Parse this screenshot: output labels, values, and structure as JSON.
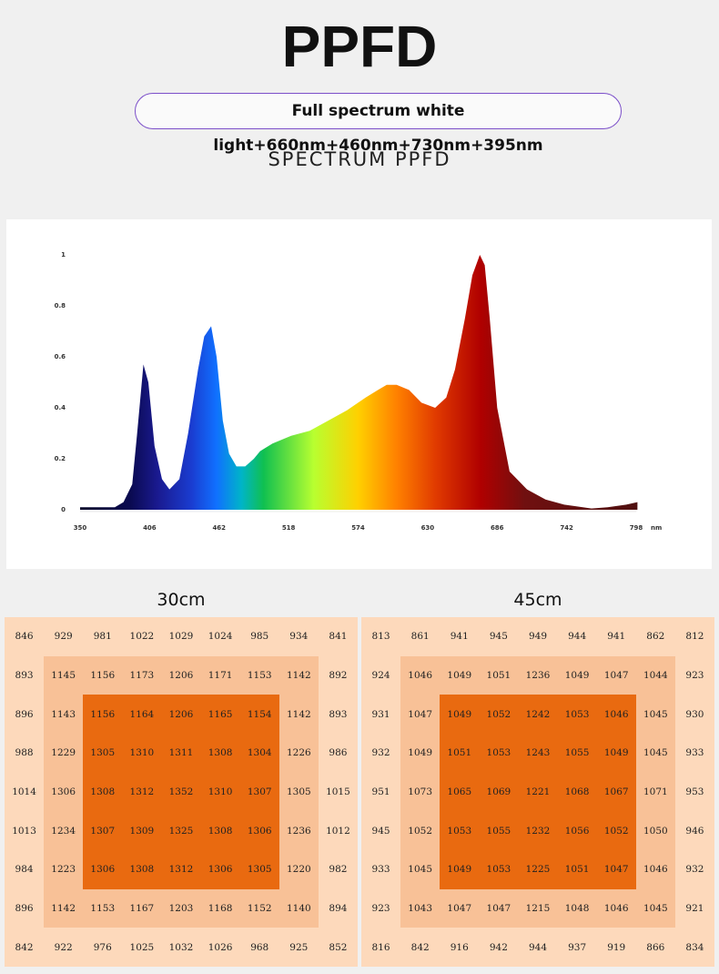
{
  "header": {
    "title": "PPFD",
    "pill": "Full spectrum white light+660nm+460nm+730nm+395nm",
    "subtitle": "SPECTRUM PPFD"
  },
  "chart_data": {
    "type": "area",
    "title": "SPECTRUM PPFD",
    "xlabel": "nm",
    "ylabel": "",
    "xlim": [
      350,
      798
    ],
    "ylim": [
      0,
      1
    ],
    "xticks": [
      "350",
      "406",
      "462",
      "518",
      "574",
      "630",
      "686",
      "742",
      "798"
    ],
    "yticks": [
      "0",
      "0.2",
      "0.4",
      "0.6",
      "0.8",
      "1"
    ],
    "x": [
      350,
      370,
      378,
      385,
      392,
      396,
      401,
      405,
      410,
      416,
      422,
      430,
      437,
      445,
      450,
      455.6,
      460,
      465,
      470,
      476,
      483,
      490,
      495,
      505,
      520,
      535,
      550,
      565,
      580,
      590,
      597,
      605,
      615,
      625,
      636,
      645,
      652,
      660,
      666,
      672,
      676,
      680,
      686,
      696,
      710,
      725,
      740,
      755,
      762,
      775,
      790,
      799
    ],
    "y": [
      0.01,
      0.01,
      0.01,
      0.03,
      0.1,
      0.3,
      0.57,
      0.5,
      0.25,
      0.12,
      0.08,
      0.12,
      0.3,
      0.55,
      0.68,
      0.72,
      0.6,
      0.35,
      0.22,
      0.17,
      0.17,
      0.2,
      0.23,
      0.26,
      0.29,
      0.31,
      0.35,
      0.39,
      0.44,
      0.47,
      0.49,
      0.49,
      0.47,
      0.42,
      0.4,
      0.44,
      0.55,
      0.75,
      0.92,
      1.0,
      0.96,
      0.75,
      0.4,
      0.15,
      0.08,
      0.04,
      0.02,
      0.01,
      0.005,
      0.01,
      0.02,
      0.03
    ]
  },
  "tables": [
    {
      "label": "30cm",
      "rows": [
        [
          "846",
          "929",
          "981",
          "1022",
          "1029",
          "1024",
          "985",
          "934",
          "841"
        ],
        [
          "893",
          "1145",
          "1156",
          "1173",
          "1206",
          "1171",
          "1153",
          "1142",
          "892"
        ],
        [
          "896",
          "1143",
          "1156",
          "1164",
          "1206",
          "1165",
          "1154",
          "1142",
          "893"
        ],
        [
          "988",
          "1229",
          "1305",
          "1310",
          "1311",
          "1308",
          "1304",
          "1226",
          "986"
        ],
        [
          "1014",
          "1306",
          "1308",
          "1312",
          "1352",
          "1310",
          "1307",
          "1305",
          "1015"
        ],
        [
          "1013",
          "1234",
          "1307",
          "1309",
          "1325",
          "1308",
          "1306",
          "1236",
          "1012"
        ],
        [
          "984",
          "1223",
          "1306",
          "1308",
          "1312",
          "1306",
          "1305",
          "1220",
          "982"
        ],
        [
          "896",
          "1142",
          "1153",
          "1167",
          "1203",
          "1168",
          "1152",
          "1140",
          "894"
        ],
        [
          "842",
          "922",
          "976",
          "1025",
          "1032",
          "1026",
          "968",
          "925",
          "852"
        ]
      ]
    },
    {
      "label": "45cm",
      "rows": [
        [
          "813",
          "861",
          "941",
          "945",
          "949",
          "944",
          "941",
          "862",
          "812"
        ],
        [
          "924",
          "1046",
          "1049",
          "1051",
          "1236",
          "1049",
          "1047",
          "1044",
          "923"
        ],
        [
          "931",
          "1047",
          "1049",
          "1052",
          "1242",
          "1053",
          "1046",
          "1045",
          "930"
        ],
        [
          "932",
          "1049",
          "1051",
          "1053",
          "1243",
          "1055",
          "1049",
          "1045",
          "933"
        ],
        [
          "951",
          "1073",
          "1065",
          "1069",
          "1221",
          "1068",
          "1067",
          "1071",
          "953"
        ],
        [
          "945",
          "1052",
          "1053",
          "1055",
          "1232",
          "1056",
          "1052",
          "1050",
          "946"
        ],
        [
          "933",
          "1045",
          "1049",
          "1053",
          "1225",
          "1051",
          "1047",
          "1046",
          "932"
        ],
        [
          "923",
          "1043",
          "1047",
          "1047",
          "1215",
          "1048",
          "1046",
          "1045",
          "921"
        ],
        [
          "816",
          "842",
          "916",
          "942",
          "944",
          "937",
          "919",
          "866",
          "834"
        ]
      ]
    }
  ]
}
